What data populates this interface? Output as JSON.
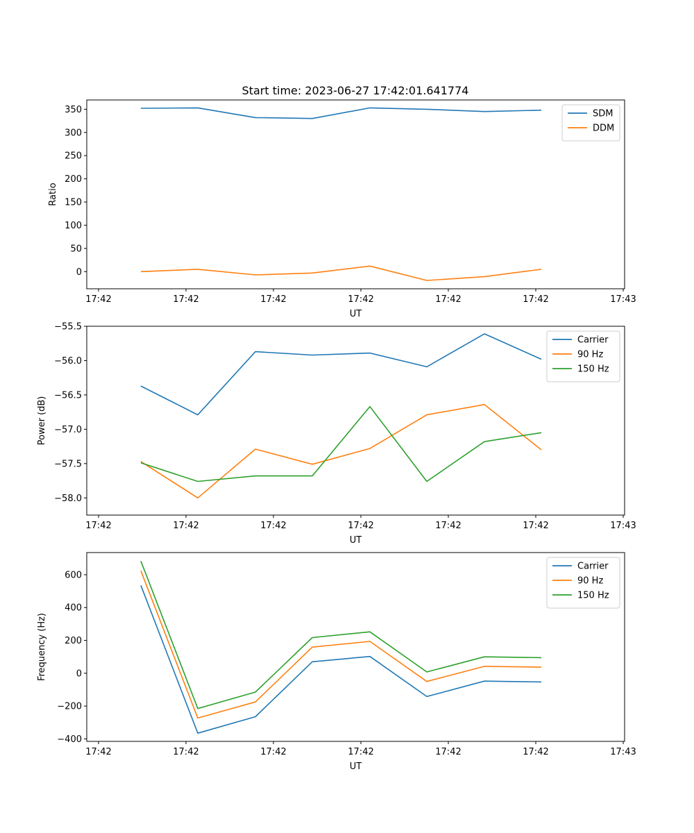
{
  "title": "Start time: 2023-06-27 17:42:01.641774",
  "chart_data": [
    {
      "type": "line",
      "ylabel": "Ratio",
      "xlabel": "UT",
      "x_ticks": [
        "17:42",
        "17:42",
        "17:42",
        "17:42",
        "17:42",
        "17:42",
        "17:43"
      ],
      "y_ticks": [
        0,
        50,
        100,
        150,
        200,
        250,
        300,
        350
      ],
      "ylim": [
        -37,
        370
      ],
      "legend_position": "top-right",
      "series": [
        {
          "name": "SDM",
          "color": "#1f77b4",
          "values": [
            352,
            353,
            332,
            330,
            353,
            350,
            345,
            348
          ]
        },
        {
          "name": "DDM",
          "color": "#ff7f0e",
          "values": [
            0,
            5,
            -7,
            -3,
            12,
            -19,
            -11,
            5
          ]
        }
      ]
    },
    {
      "type": "line",
      "ylabel": "Power (dB)",
      "xlabel": "UT",
      "x_ticks": [
        "17:42",
        "17:42",
        "17:42",
        "17:42",
        "17:42",
        "17:42",
        "17:43"
      ],
      "y_ticks": [
        -58.0,
        -57.5,
        -57.0,
        -56.5,
        -56.0,
        -55.5
      ],
      "y_tick_labels": [
        "−58.0",
        "−57.5",
        "−57.0",
        "−56.5",
        "−56.0",
        "−55.5"
      ],
      "ylim": [
        -58.25,
        -55.5
      ],
      "legend_position": "top-right",
      "series": [
        {
          "name": "Carrier",
          "color": "#1f77b4",
          "values": [
            -56.37,
            -56.79,
            -55.87,
            -55.92,
            -55.89,
            -56.09,
            -55.61,
            -55.98
          ]
        },
        {
          "name": "90 Hz",
          "color": "#ff7f0e",
          "values": [
            -57.47,
            -58.0,
            -57.29,
            -57.51,
            -57.28,
            -56.79,
            -56.64,
            -57.3
          ]
        },
        {
          "name": "150 Hz",
          "color": "#2ca02c",
          "values": [
            -57.49,
            -57.76,
            -57.68,
            -57.68,
            -56.67,
            -57.76,
            -57.18,
            -57.05
          ]
        }
      ]
    },
    {
      "type": "line",
      "ylabel": "Frequency (Hz)",
      "xlabel": "UT",
      "x_ticks": [
        "17:42",
        "17:42",
        "17:42",
        "17:42",
        "17:42",
        "17:42",
        "17:43"
      ],
      "y_ticks": [
        -400,
        -200,
        0,
        200,
        400,
        600
      ],
      "y_tick_labels": [
        "−400",
        "−200",
        "0",
        "200",
        "400",
        "600"
      ],
      "ylim": [
        -415,
        735
      ],
      "legend_position": "top-right",
      "series": [
        {
          "name": "Carrier",
          "color": "#1f77b4",
          "values": [
            535,
            -365,
            -265,
            70,
            102,
            -142,
            -48,
            -53
          ]
        },
        {
          "name": "90 Hz",
          "color": "#ff7f0e",
          "values": [
            624,
            -273,
            -175,
            159,
            194,
            -50,
            42,
            37
          ]
        },
        {
          "name": "150 Hz",
          "color": "#2ca02c",
          "values": [
            683,
            -215,
            -115,
            217,
            252,
            8,
            100,
            95
          ]
        }
      ]
    }
  ]
}
